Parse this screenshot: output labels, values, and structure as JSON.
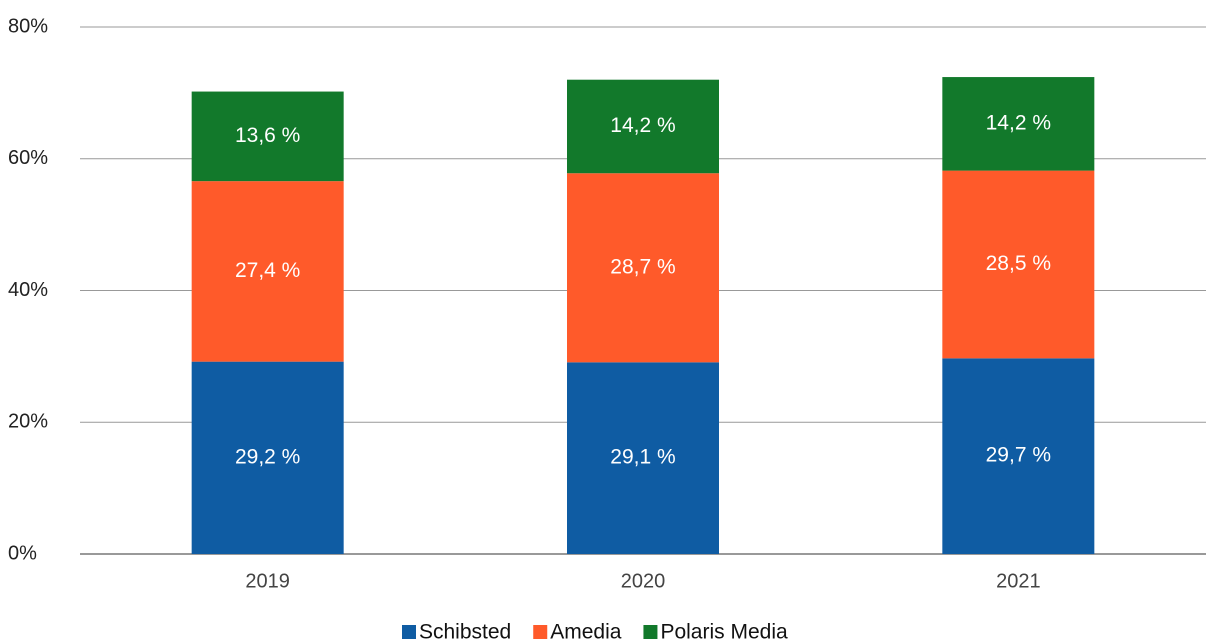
{
  "chart_data": {
    "type": "stacked_bar",
    "categories": [
      "2019",
      "2020",
      "2021"
    ],
    "series": [
      {
        "name": "Schibsted",
        "color": "#0f5ca3",
        "values": [
          29.2,
          29.1,
          29.7
        ],
        "value_labels": [
          "29,2 %",
          "29,1 %",
          "29,7 %"
        ]
      },
      {
        "name": "Amedia",
        "color": "#ff5a2a",
        "values": [
          27.4,
          28.7,
          28.5
        ],
        "value_labels": [
          "27,4 %",
          "28,7 %",
          "28,5 %"
        ]
      },
      {
        "name": "Polaris Media",
        "color": "#12792b",
        "values": [
          13.6,
          14.2,
          14.2
        ],
        "value_labels": [
          "13,6 %",
          "14,2 %",
          "14,2 %"
        ]
      }
    ],
    "ylim": [
      0,
      80
    ],
    "yticks": [
      {
        "value": 0,
        "label": "0%"
      },
      {
        "value": 20,
        "label": "20%"
      },
      {
        "value": 40,
        "label": "40%"
      },
      {
        "value": 60,
        "label": "60%"
      },
      {
        "value": 80,
        "label": "80%"
      }
    ],
    "grid": true,
    "legend": "bottom"
  }
}
